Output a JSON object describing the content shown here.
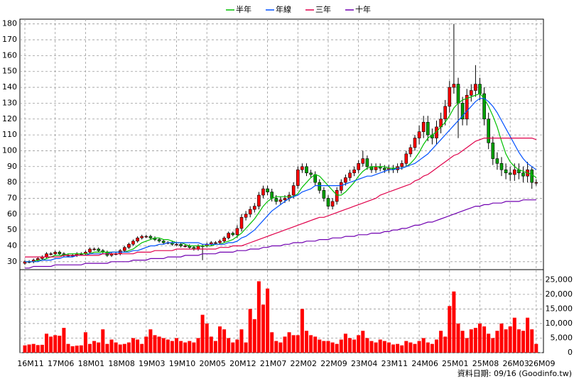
{
  "chart_data": [
    {
      "type": "candlestick",
      "categories": [
        "16M11",
        null,
        null,
        null,
        null,
        null,
        null,
        "17M06",
        null,
        null,
        null,
        null,
        null,
        null,
        "18M01",
        null,
        null,
        null,
        null,
        null,
        null,
        "18M08",
        null,
        null,
        null,
        null,
        null,
        null,
        "19M03",
        null,
        null,
        null,
        null,
        null,
        null,
        "19M10",
        null,
        null,
        null,
        null,
        null,
        null,
        "20M05",
        null,
        null,
        null,
        null,
        null,
        null,
        "20M12",
        null,
        null,
        null,
        null,
        null,
        null,
        "21M07",
        null,
        null,
        null,
        null,
        null,
        null,
        "22M02",
        null,
        null,
        null,
        null,
        null,
        null,
        "22M09",
        null,
        null,
        null,
        null,
        null,
        null,
        "23M04",
        null,
        null,
        null,
        null,
        null,
        null,
        "23M11",
        null,
        null,
        null,
        null,
        null,
        null,
        "24M06",
        null,
        null,
        null,
        null,
        null,
        null,
        "25M01",
        null,
        null,
        null,
        null,
        null,
        null,
        "25M08",
        null,
        null,
        null,
        null,
        null,
        null,
        "26M03",
        null,
        null,
        null,
        null,
        null,
        "26M09"
      ],
      "open": [
        29,
        30,
        30,
        31,
        32,
        33,
        35,
        35,
        36,
        35,
        34,
        34,
        34,
        35,
        35,
        36,
        38,
        38,
        37,
        36,
        34,
        35,
        35,
        37,
        39,
        41,
        43,
        45,
        46,
        46,
        45,
        44,
        43,
        42,
        42,
        41,
        41,
        40,
        40,
        39,
        38,
        40,
        40,
        41,
        42,
        42,
        43,
        45,
        48,
        47,
        51,
        58,
        60,
        63,
        65,
        72,
        76,
        74,
        70,
        68,
        69,
        70,
        72,
        78,
        88,
        90,
        86,
        85,
        80,
        75,
        70,
        65,
        68,
        75,
        80,
        83,
        86,
        88,
        92,
        95,
        90,
        88,
        90,
        89,
        88,
        89,
        88,
        90,
        92,
        98,
        102,
        108,
        112,
        118,
        110,
        108,
        115,
        120,
        128,
        140,
        142,
        130,
        120,
        135,
        138,
        142,
        136,
        120,
        105,
        95,
        92,
        88,
        86,
        85,
        88,
        86,
        84,
        88,
        80
      ],
      "high": [
        31,
        31,
        32,
        33,
        34,
        36,
        36,
        37,
        37,
        36,
        35,
        35,
        36,
        36,
        37,
        39,
        39,
        39,
        38,
        37,
        36,
        36,
        38,
        40,
        42,
        44,
        46,
        47,
        47,
        47,
        46,
        45,
        44,
        43,
        43,
        42,
        42,
        41,
        41,
        40,
        41,
        41,
        42,
        43,
        43,
        44,
        46,
        49,
        49,
        53,
        60,
        62,
        65,
        67,
        74,
        78,
        78,
        76,
        72,
        71,
        72,
        74,
        80,
        90,
        92,
        92,
        88,
        87,
        82,
        77,
        72,
        70,
        77,
        82,
        85,
        88,
        90,
        94,
        100,
        97,
        92,
        92,
        92,
        91,
        91,
        91,
        92,
        94,
        100,
        104,
        110,
        116,
        122,
        122,
        114,
        119,
        124,
        132,
        144,
        180,
        146,
        134,
        139,
        142,
        154,
        146,
        140,
        124,
        109,
        99,
        96,
        92,
        90,
        92,
        92,
        90,
        93,
        90,
        82
      ],
      "low": [
        28,
        29,
        29,
        30,
        31,
        32,
        34,
        34,
        34,
        33,
        33,
        33,
        33,
        34,
        34,
        35,
        37,
        36,
        35,
        33,
        33,
        34,
        34,
        36,
        38,
        40,
        42,
        44,
        45,
        44,
        43,
        42,
        41,
        41,
        40,
        40,
        39,
        39,
        38,
        37,
        37,
        31,
        39,
        40,
        41,
        41,
        42,
        44,
        46,
        45,
        49,
        56,
        58,
        61,
        63,
        70,
        72,
        68,
        66,
        66,
        67,
        68,
        70,
        76,
        86,
        84,
        83,
        78,
        73,
        68,
        63,
        63,
        66,
        73,
        78,
        81,
        84,
        86,
        90,
        88,
        86,
        86,
        87,
        86,
        86,
        86,
        86,
        88,
        90,
        96,
        100,
        104,
        108,
        106,
        104,
        104,
        111,
        116,
        124,
        136,
        108,
        116,
        116,
        131,
        134,
        132,
        116,
        101,
        91,
        88,
        84,
        82,
        81,
        81,
        82,
        80,
        80,
        76,
        78
      ],
      "close": [
        30,
        30,
        31,
        32,
        33,
        35,
        35,
        36,
        35,
        34,
        34,
        34,
        35,
        35,
        36,
        38,
        38,
        37,
        36,
        34,
        35,
        35,
        37,
        39,
        41,
        43,
        45,
        46,
        46,
        45,
        44,
        43,
        42,
        42,
        41,
        41,
        40,
        40,
        39,
        38,
        40,
        40,
        41,
        42,
        42,
        43,
        45,
        48,
        47,
        51,
        58,
        60,
        63,
        65,
        72,
        76,
        74,
        70,
        68,
        69,
        70,
        72,
        78,
        88,
        90,
        86,
        85,
        80,
        75,
        70,
        65,
        68,
        75,
        80,
        83,
        86,
        88,
        92,
        95,
        90,
        88,
        90,
        89,
        88,
        89,
        88,
        90,
        92,
        98,
        102,
        108,
        112,
        118,
        110,
        108,
        115,
        120,
        128,
        140,
        142,
        130,
        120,
        135,
        138,
        142,
        136,
        120,
        105,
        95,
        92,
        88,
        86,
        85,
        88,
        86,
        84,
        88,
        80,
        80
      ],
      "up_color": "#ff0000",
      "down_color": "#00a000",
      "series": [
        {
          "name": "半年",
          "color": "#00c000",
          "values": [
            30,
            30,
            30,
            31,
            31,
            32,
            33,
            34,
            34,
            34,
            35,
            35,
            35,
            35,
            35,
            35,
            36,
            36,
            36,
            36,
            36,
            36,
            36,
            36,
            37,
            38,
            40,
            42,
            43,
            44,
            45,
            45,
            44,
            44,
            43,
            42,
            42,
            41,
            40,
            40,
            40,
            40,
            40,
            40,
            41,
            41,
            42,
            43,
            44,
            46,
            48,
            51,
            54,
            57,
            61,
            65,
            68,
            70,
            71,
            71,
            71,
            71,
            71,
            73,
            77,
            80,
            83,
            85,
            84,
            81,
            78,
            75,
            72,
            72,
            74,
            77,
            80,
            84,
            87,
            89,
            90,
            90,
            90,
            90,
            89,
            89,
            89,
            89,
            90,
            92,
            95,
            99,
            104,
            108,
            110,
            112,
            115,
            118,
            122,
            127,
            130,
            132,
            133,
            134,
            135,
            136,
            133,
            128,
            122,
            115,
            106,
            98,
            93,
            90,
            88,
            87,
            86,
            85,
            83
          ]
        },
        {
          "name": "年線",
          "color": "#0050ff",
          "values": [
            30,
            30,
            30,
            30,
            31,
            31,
            31,
            32,
            32,
            33,
            33,
            33,
            34,
            34,
            34,
            35,
            35,
            35,
            35,
            35,
            36,
            36,
            36,
            36,
            36,
            37,
            37,
            38,
            39,
            40,
            40,
            41,
            41,
            42,
            42,
            42,
            42,
            42,
            42,
            42,
            42,
            41,
            41,
            41,
            41,
            41,
            41,
            42,
            42,
            43,
            45,
            46,
            48,
            50,
            53,
            56,
            59,
            62,
            64,
            66,
            68,
            70,
            71,
            72,
            74,
            75,
            76,
            78,
            78,
            78,
            78,
            78,
            78,
            78,
            79,
            80,
            81,
            82,
            83,
            84,
            84,
            85,
            86,
            87,
            88,
            88,
            89,
            89,
            90,
            91,
            92,
            94,
            96,
            98,
            101,
            104,
            107,
            110,
            113,
            116,
            119,
            122,
            125,
            128,
            131,
            133,
            133,
            131,
            128,
            124,
            119,
            114,
            109,
            104,
            99,
            95,
            92,
            90,
            88
          ]
        },
        {
          "name": "三年",
          "color": "#e0004a",
          "values": [
            33,
            33,
            33,
            33,
            33,
            33,
            33,
            33,
            33,
            34,
            34,
            34,
            34,
            34,
            34,
            34,
            34,
            34,
            35,
            35,
            35,
            35,
            35,
            35,
            35,
            35,
            36,
            36,
            36,
            36,
            37,
            37,
            37,
            37,
            37,
            38,
            38,
            38,
            38,
            38,
            38,
            38,
            38,
            38,
            38,
            39,
            39,
            39,
            40,
            40,
            40,
            41,
            42,
            43,
            44,
            45,
            46,
            47,
            48,
            49,
            50,
            51,
            52,
            53,
            54,
            55,
            56,
            57,
            58,
            58,
            59,
            60,
            61,
            62,
            63,
            64,
            65,
            66,
            67,
            68,
            69,
            70,
            72,
            73,
            74,
            75,
            76,
            77,
            78,
            79,
            81,
            82,
            84,
            85,
            87,
            89,
            91,
            93,
            95,
            97,
            98,
            100,
            102,
            104,
            106,
            107,
            108,
            108,
            108,
            108,
            108,
            108,
            108,
            108,
            108,
            108,
            108,
            108,
            107
          ]
        },
        {
          "name": "十年",
          "color": "#7000b0",
          "values": [
            26,
            26,
            27,
            27,
            27,
            27,
            27,
            28,
            28,
            28,
            28,
            28,
            28,
            28,
            29,
            29,
            29,
            29,
            29,
            29,
            30,
            30,
            30,
            30,
            30,
            31,
            31,
            31,
            31,
            32,
            32,
            32,
            32,
            33,
            33,
            33,
            33,
            34,
            34,
            34,
            34,
            35,
            35,
            35,
            35,
            36,
            36,
            36,
            36,
            37,
            37,
            37,
            38,
            38,
            38,
            39,
            39,
            40,
            40,
            40,
            41,
            41,
            42,
            42,
            42,
            43,
            43,
            43,
            44,
            44,
            44,
            45,
            45,
            45,
            46,
            46,
            46,
            47,
            47,
            47,
            48,
            48,
            48,
            49,
            49,
            50,
            50,
            51,
            51,
            52,
            53,
            53,
            54,
            55,
            55,
            56,
            57,
            58,
            59,
            60,
            61,
            62,
            63,
            64,
            65,
            65,
            66,
            66,
            67,
            67,
            67,
            68,
            68,
            68,
            68,
            69,
            69,
            69,
            69
          ]
        }
      ],
      "ylim": [
        25,
        183
      ],
      "yticks": [
        30,
        40,
        50,
        60,
        70,
        80,
        90,
        100,
        110,
        120,
        130,
        140,
        150,
        160,
        170,
        180
      ],
      "grid": true,
      "legend": "top"
    },
    {
      "type": "bar",
      "values": [
        2500,
        2800,
        3000,
        2600,
        2700,
        6500,
        5500,
        6000,
        5800,
        8500,
        3000,
        2200,
        2400,
        2500,
        7000,
        3000,
        4000,
        3500,
        8000,
        3000,
        4500,
        3500,
        2800,
        3000,
        3500,
        5000,
        4500,
        3000,
        5500,
        8000,
        6000,
        5500,
        5000,
        4500,
        4000,
        5000,
        4000,
        3500,
        4000,
        3500,
        5000,
        13000,
        10000,
        5500,
        4000,
        9000,
        8000,
        5000,
        3500,
        4500,
        8000,
        3500,
        15000,
        11500,
        24500,
        16500,
        22000,
        7000,
        4000,
        3500,
        5500,
        7000,
        6000,
        6000,
        15000,
        7500,
        6000,
        5500,
        4500,
        4000,
        4000,
        3500,
        3000,
        4500,
        6500,
        5000,
        4500,
        6000,
        7500,
        5000,
        4000,
        3500,
        4500,
        4000,
        3500,
        2800,
        3000,
        2500,
        4000,
        3500,
        3000,
        4000,
        5000,
        3500,
        3000,
        4500,
        7500,
        5500,
        16000,
        21000,
        10000,
        7500,
        5000,
        8000,
        8500,
        10000,
        9000,
        6500,
        5000,
        7500,
        10000,
        8000,
        9000,
        12000,
        8000,
        7500,
        12000,
        8000,
        3000
      ],
      "color": "#ff0000",
      "ylim": [
        0,
        28500
      ],
      "yticks": [
        0,
        {
          "value": 5000,
          "label": "5,000"
        },
        {
          "value": 10000,
          "label": "10,000"
        },
        {
          "value": 15000,
          "label": "15,000"
        },
        {
          "value": 20000,
          "label": "20,000"
        },
        {
          "value": 25000,
          "label": "25,000"
        }
      ],
      "grid": true
    }
  ],
  "source_note": "資料日期: 09/16 (Goodinfo.tw)"
}
